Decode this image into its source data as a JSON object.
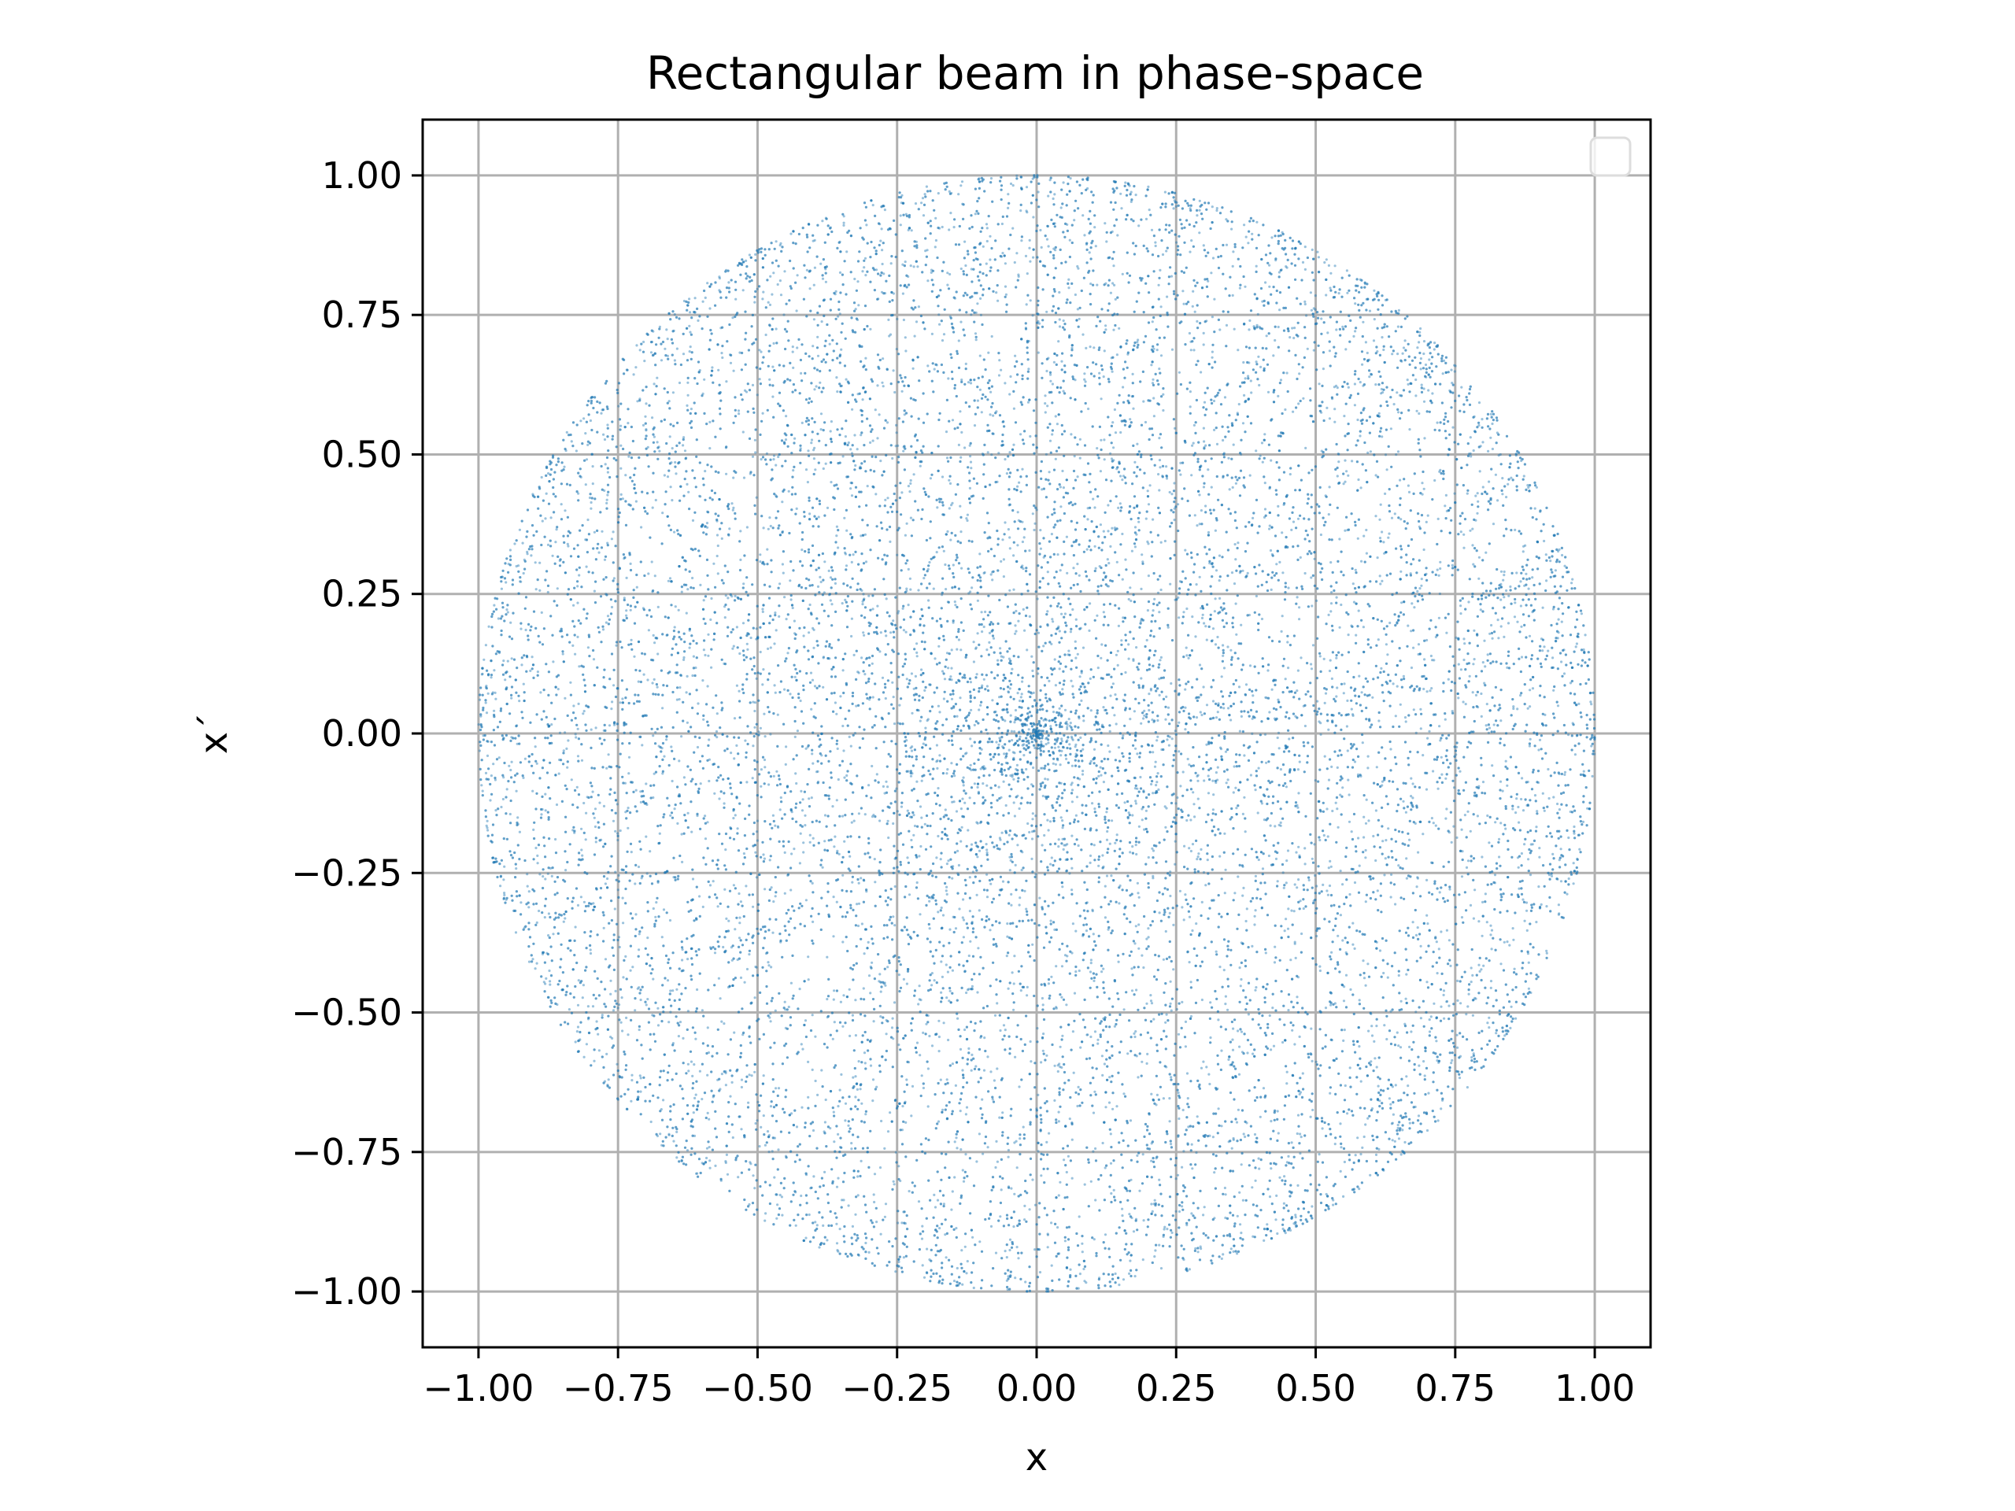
{
  "chart_data": {
    "type": "scatter",
    "title": "Rectangular beam in phase-space",
    "xlabel": "x",
    "ylabel": "x´",
    "xlim": [
      -1.1,
      1.1
    ],
    "ylim": [
      -1.1,
      1.1
    ],
    "xticks": [
      -1.0,
      -0.75,
      -0.5,
      -0.25,
      0.0,
      0.25,
      0.5,
      0.75,
      1.0
    ],
    "yticks": [
      -1.0,
      -0.75,
      -0.5,
      -0.25,
      0.0,
      0.25,
      0.5,
      0.75,
      1.0
    ],
    "xtick_labels": [
      "−1.00",
      "−0.75",
      "−0.50",
      "−0.25",
      "0.00",
      "0.25",
      "0.50",
      "0.75",
      "1.00"
    ],
    "ytick_labels": [
      "−1.00",
      "−0.75",
      "−0.50",
      "−0.25",
      "0.00",
      "0.25",
      "0.50",
      "0.75",
      "1.00"
    ],
    "grid": true,
    "legend": "upper right, empty",
    "series": [
      {
        "distribution": "filled unit disc, uniform in angle, points denser toward the circular edge",
        "center": [
          0.0,
          0.0
        ],
        "radius": 1.0,
        "color": "#1f77b4"
      }
    ]
  }
}
